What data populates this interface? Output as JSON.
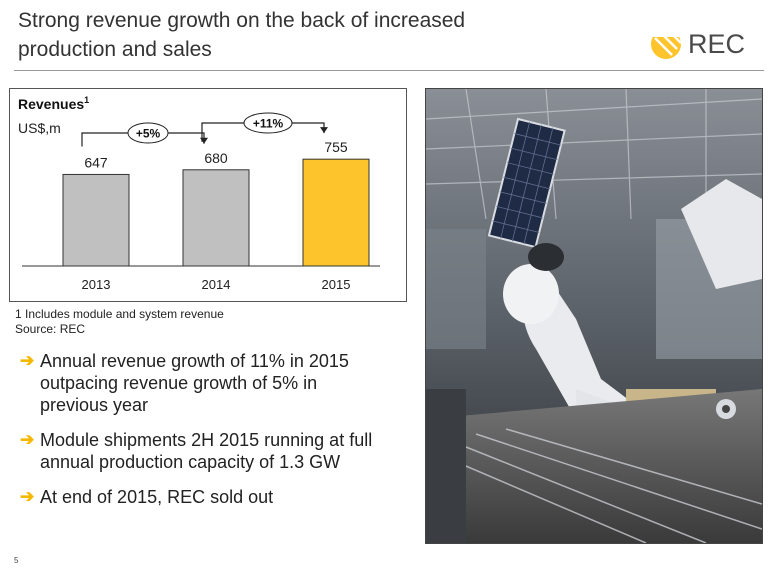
{
  "header": {
    "title_line1": "Strong revenue growth on the back of increased",
    "title_line2": "production and sales",
    "logo_text": "REC"
  },
  "chart_data": {
    "type": "bar",
    "title": "Revenues",
    "title_superscript": "1",
    "unit_label": "US$,m",
    "categories": [
      "2013",
      "2014",
      "2015"
    ],
    "values": [
      647,
      680,
      755
    ],
    "data_labels": [
      "647",
      "680",
      "755"
    ],
    "colors": [
      "#c0c0c0",
      "#c0c0c0",
      "#fdc52b"
    ],
    "growth_annotations": [
      {
        "label": "+5%",
        "from": "2013",
        "to": "2014"
      },
      {
        "label": "+11%",
        "from": "2014",
        "to": "2015"
      }
    ],
    "ylim": [
      0,
      1000
    ],
    "grid": false
  },
  "footnote": {
    "line1": "1 Includes module and system revenue",
    "line2": "Source: REC"
  },
  "bullets": [
    {
      "lines": [
        "Annual revenue growth of 11% in 2015",
        "outpacing revenue growth of 5% in",
        "previous year"
      ]
    },
    {
      "lines": [
        "Module shipments 2H 2015 running at full",
        "annual production capacity of 1.3 GW"
      ]
    },
    {
      "lines": [
        "At end of 2015, REC sold out"
      ]
    }
  ],
  "page_number": "5",
  "colors": {
    "accent": "#fdc52b",
    "bar_grey": "#c0c0c0",
    "arrow": "#f5b800"
  },
  "photo": {
    "icon": "factory-robot-photo"
  }
}
